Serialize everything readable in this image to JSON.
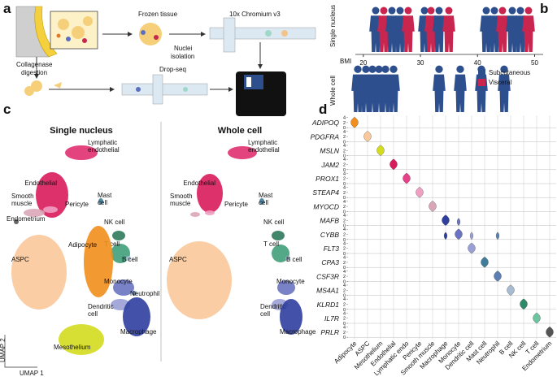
{
  "panel_labels": [
    "a",
    "b",
    "c",
    "d"
  ],
  "panel_a": {
    "frozen": "Frozen tissue",
    "nuclei": [
      "Nuclei",
      "isolation"
    ],
    "chromium": "10x Chromium v3",
    "collagenase": [
      "Collagenase",
      "digestion"
    ],
    "dropseq": "Drop-seq"
  },
  "panel_b": {
    "rows": [
      "Single nucleus",
      "Whole cell"
    ],
    "axis_label": "BMI",
    "xlim": [
      18.6,
      51.5
    ],
    "xticks": [
      20,
      30,
      40,
      50
    ],
    "legend": [
      {
        "name": "Subcutaneous",
        "color": "#2d4f8e"
      },
      {
        "name": "Visceral",
        "color": "#c8254f"
      }
    ]
  },
  "panel_c": {
    "x_label": "UMAP 1",
    "y_label": "UMAP 2",
    "panels": [
      {
        "title": "Single nucleus",
        "clusters": [
          {
            "label": [
              "Lymphatic",
              "endothelial"
            ],
            "color": "#e0306f"
          },
          {
            "label": [
              "Endothelial"
            ],
            "color": "#d81b5a"
          },
          {
            "label": [
              "Mast",
              "cell"
            ],
            "color": "#3f7d9c"
          },
          {
            "label": [
              "Smooth",
              "muscle"
            ],
            "color": "#d9a6b8"
          },
          {
            "label": [
              "Pericyte"
            ],
            "color": "#ef9fc2"
          },
          {
            "label": [
              "Endometrium"
            ],
            "color": "#555555"
          },
          {
            "label": [
              "NK cell"
            ],
            "color": "#2e7a5c"
          },
          {
            "label": [
              "T cell"
            ],
            "color": "#3f9e7a"
          },
          {
            "label": [
              "Adipocyte"
            ],
            "color": "#f28e1c"
          },
          {
            "label": [
              "B cell"
            ],
            "color": "#a7bcd0"
          },
          {
            "label": [
              "ASPC"
            ],
            "color": "#f9c89b"
          },
          {
            "label": [
              "Monocyte"
            ],
            "color": "#6a74c0"
          },
          {
            "label": [
              "Neutrophil"
            ],
            "color": "#5a7fb0"
          },
          {
            "label": [
              "Dendritic",
              "cell"
            ],
            "color": "#9aa0d6"
          },
          {
            "label": [
              "Macrophage"
            ],
            "color": "#2f3f9e"
          },
          {
            "label": [
              "Mesothelium"
            ],
            "color": "#d4dc1e"
          }
        ]
      },
      {
        "title": "Whole cell",
        "clusters": [
          {
            "label": [
              "Lymphatic",
              "endothelial"
            ],
            "color": "#e0306f"
          },
          {
            "label": [
              "Endothelial"
            ],
            "color": "#d81b5a"
          },
          {
            "label": [
              "Mast",
              "cell"
            ],
            "color": "#3f7d9c"
          },
          {
            "label": [
              "Smooth",
              "muscle"
            ],
            "color": "#d9a6b8"
          },
          {
            "label": [
              "Pericyte"
            ],
            "color": "#ef9fc2"
          },
          {
            "label": [
              "NK cell"
            ],
            "color": "#2e7a5c"
          },
          {
            "label": [
              "T cell"
            ],
            "color": "#3f9e7a"
          },
          {
            "label": [
              "ASPC"
            ],
            "color": "#f9c89b"
          },
          {
            "label": [
              "B cell"
            ],
            "color": "#a7bcd0"
          },
          {
            "label": [
              "Monocyte"
            ],
            "color": "#6a74c0"
          },
          {
            "label": [
              "Dendritic",
              "cell"
            ],
            "color": "#9aa0d6"
          },
          {
            "label": [
              "Macrophage"
            ],
            "color": "#2f3f9e"
          }
        ]
      }
    ]
  },
  "panel_d": {
    "genes": [
      "ADIPOQ",
      "PDGFRA",
      "MSLN",
      "JAM2",
      "PROX1",
      "STEAP4",
      "MYOCD",
      "MAFB",
      "CYBB",
      "FLT3",
      "CPA3",
      "CSF3R",
      "MS4A1",
      "KLRD1",
      "IL7R",
      "PRLR"
    ],
    "cell_types": [
      "Adipocyte",
      "ASPC",
      "Mesothelium",
      "Endothelial",
      "Lymphatic endo",
      "Pericyte",
      "Smooth muscle",
      "Macrophage",
      "Monocyte",
      "Dendritic cell",
      "Mast cell",
      "Neutrophil",
      "B cell",
      "NK cell",
      "T cell",
      "Endometrium"
    ],
    "colors": [
      "#f28e1c",
      "#f9c89b",
      "#d4dc1e",
      "#d81b5a",
      "#e8418a",
      "#ef9fc2",
      "#d9a6b8",
      "#2f3f9e",
      "#6a74c0",
      "#9aa0d6",
      "#3f7d9c",
      "#5a7fb0",
      "#a7bcd0",
      "#2e8a68",
      "#6fc4a0",
      "#555555"
    ],
    "ylim": [
      0,
      4.5
    ],
    "yticks": [
      0,
      2,
      4
    ]
  }
}
